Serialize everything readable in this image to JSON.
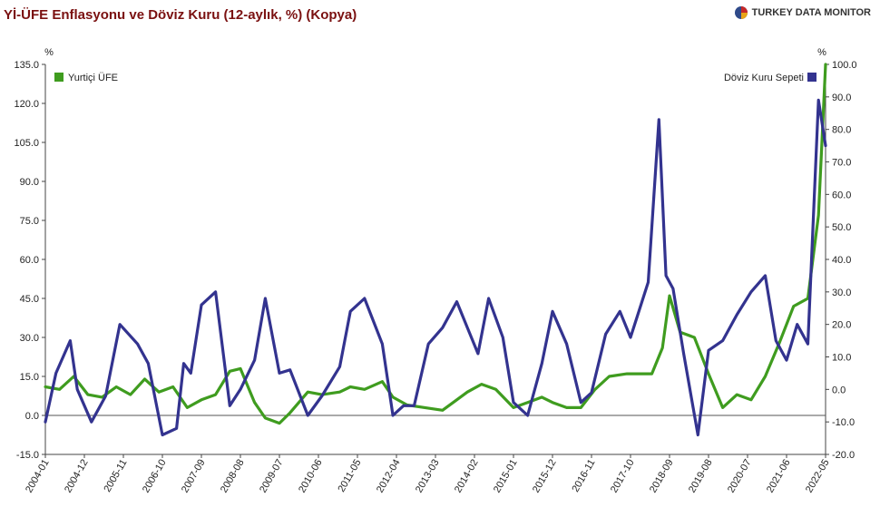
{
  "header": {
    "title": "Yİ-ÜFE Enflasyonu ve Döviz Kuru (12-aylık, %) (Kopya)",
    "brand": "TURKEY DATA MONITOR"
  },
  "colors": {
    "ufe": "#3f9c1f",
    "fx": "#33338f",
    "zero_line": "#555555",
    "axis": "#444444"
  },
  "chart_data": {
    "type": "line",
    "title": "Yİ-ÜFE Enflasyonu ve Döviz Kuru (12-aylık, %) (Kopya)",
    "left_axis": {
      "unit": "%",
      "min": -15,
      "max": 135,
      "ticks": [
        "135.0",
        "120.0",
        "105.0",
        "90.0",
        "75.0",
        "60.0",
        "45.0",
        "30.0",
        "15.0",
        "0.0",
        "-15.0"
      ]
    },
    "right_axis": {
      "unit": "%",
      "min": -20,
      "max": 100,
      "ticks": [
        "100.0",
        "90.0",
        "80.0",
        "70.0",
        "60.0",
        "50.0",
        "40.0",
        "30.0",
        "20.0",
        "10.0",
        "0.0",
        "-10.0",
        "-20.0"
      ]
    },
    "x_ticks": [
      "2004-01",
      "2004-12",
      "2005-11",
      "2006-10",
      "2007-09",
      "2008-08",
      "2009-07",
      "2010-06",
      "2011-05",
      "2012-04",
      "2013-03",
      "2014-02",
      "2015-01",
      "2015-12",
      "2016-11",
      "2017-10",
      "2018-09",
      "2019-08",
      "2020-07",
      "2021-06",
      "2022-05"
    ],
    "x_range": [
      "2004-01",
      "2022-05"
    ],
    "legend": {
      "left": "Yurtiçi ÜFE",
      "right": "Döviz Kuru Sepeti"
    },
    "series": [
      {
        "name": "Yurtiçi ÜFE",
        "axis": "left",
        "x": [
          "2004-01",
          "2004-05",
          "2004-09",
          "2005-01",
          "2005-05",
          "2005-09",
          "2006-01",
          "2006-05",
          "2006-09",
          "2007-01",
          "2007-05",
          "2007-09",
          "2008-01",
          "2008-05",
          "2008-08",
          "2008-12",
          "2009-03",
          "2009-07",
          "2009-10",
          "2010-03",
          "2010-07",
          "2010-12",
          "2011-03",
          "2011-07",
          "2011-12",
          "2012-03",
          "2012-07",
          "2012-12",
          "2013-05",
          "2013-09",
          "2013-12",
          "2014-04",
          "2014-08",
          "2015-01",
          "2015-05",
          "2015-09",
          "2015-12",
          "2016-04",
          "2016-08",
          "2016-12",
          "2017-04",
          "2017-09",
          "2017-12",
          "2018-04",
          "2018-07",
          "2018-09",
          "2018-12",
          "2019-04",
          "2019-08",
          "2019-12",
          "2020-04",
          "2020-08",
          "2020-12",
          "2021-04",
          "2021-08",
          "2021-12",
          "2022-03",
          "2022-05"
        ],
        "values": [
          11,
          10,
          15,
          8,
          7,
          11,
          8,
          14,
          9,
          11,
          3,
          6,
          8,
          17,
          18,
          5,
          -1,
          -3,
          1,
          9,
          8,
          9,
          11,
          10,
          13,
          7,
          4,
          3,
          2,
          6,
          9,
          12,
          10,
          3,
          5,
          7,
          5,
          3,
          3,
          10,
          15,
          16,
          16,
          16,
          26,
          46,
          32,
          30,
          16,
          3,
          8,
          6,
          15,
          28,
          42,
          45,
          77,
          135
        ]
      },
      {
        "name": "Döviz Kuru Sepeti",
        "axis": "right",
        "x": [
          "2004-01",
          "2004-04",
          "2004-08",
          "2004-10",
          "2005-02",
          "2005-06",
          "2005-10",
          "2006-03",
          "2006-06",
          "2006-10",
          "2007-02",
          "2007-04",
          "2007-06",
          "2007-09",
          "2008-01",
          "2008-05",
          "2008-08",
          "2008-12",
          "2009-03",
          "2009-07",
          "2009-10",
          "2010-03",
          "2010-07",
          "2010-12",
          "2011-03",
          "2011-07",
          "2011-12",
          "2012-03",
          "2012-06",
          "2012-09",
          "2013-01",
          "2013-05",
          "2013-09",
          "2013-12",
          "2014-03",
          "2014-06",
          "2014-10",
          "2015-01",
          "2015-05",
          "2015-09",
          "2015-12",
          "2016-04",
          "2016-08",
          "2016-11",
          "2017-03",
          "2017-07",
          "2017-10",
          "2018-03",
          "2018-06",
          "2018-08",
          "2018-10",
          "2019-01",
          "2019-05",
          "2019-08",
          "2019-12",
          "2020-04",
          "2020-08",
          "2020-12",
          "2021-03",
          "2021-06",
          "2021-09",
          "2021-12",
          "2022-03",
          "2022-05"
        ],
        "values": [
          -10,
          5,
          15,
          0,
          -10,
          -2,
          20,
          14,
          8,
          -14,
          -12,
          8,
          5,
          26,
          30,
          -5,
          0,
          9,
          28,
          5,
          6,
          -8,
          -2,
          7,
          24,
          28,
          14,
          -8,
          -5,
          -5,
          14,
          19,
          27,
          19,
          11,
          28,
          16,
          -4,
          -8,
          8,
          24,
          14,
          -4,
          -1,
          17,
          24,
          16,
          33,
          83,
          35,
          31,
          11,
          -14,
          12,
          15,
          23,
          30,
          35,
          15,
          9,
          20,
          14,
          89,
          75
        ]
      }
    ]
  }
}
